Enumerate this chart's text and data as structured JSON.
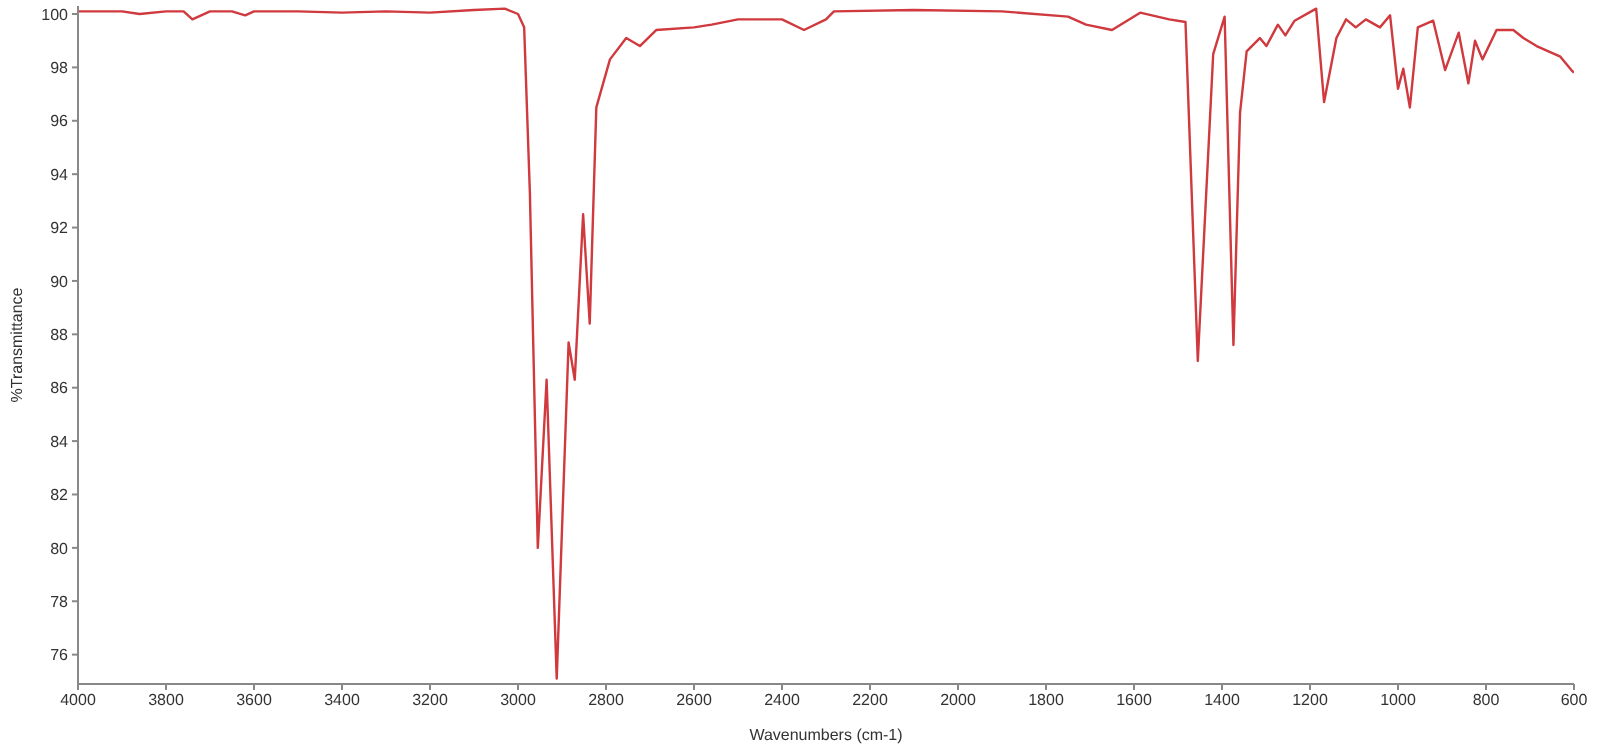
{
  "chart_data": {
    "type": "line",
    "xlabel": "Wavenumbers (cm-1)",
    "ylabel": "%Transmittance",
    "x": [
      4000,
      3900,
      3860,
      3800,
      3760,
      3740,
      3700,
      3650,
      3620,
      3600,
      3500,
      3400,
      3300,
      3200,
      3100,
      3030,
      3000,
      2986,
      2973,
      2955,
      2935,
      2912,
      2885,
      2871,
      2852,
      2837,
      2822,
      2791,
      2754,
      2723,
      2686,
      2600,
      2560,
      2500,
      2400,
      2350,
      2300,
      2282,
      2100,
      1900,
      1750,
      1709,
      1650,
      1586,
      1520,
      1483,
      1455,
      1420,
      1394,
      1374,
      1359,
      1344,
      1314,
      1299,
      1273,
      1256,
      1235,
      1186,
      1168,
      1140,
      1118,
      1096,
      1073,
      1041,
      1018,
      1000,
      988,
      973,
      955,
      920,
      893,
      862,
      840,
      825,
      808,
      776,
      738,
      715,
      685,
      631,
      606,
      600
    ],
    "series": [
      {
        "color": "#d0393e",
        "values": [
          100.1,
          100.1,
          100.0,
          100.1,
          100.1,
          99.8,
          100.1,
          100.1,
          99.95,
          100.1,
          100.1,
          100.05,
          100.1,
          100.05,
          100.15,
          100.2,
          100.0,
          99.5,
          93.3,
          80.0,
          86.3,
          75.1,
          87.7,
          86.3,
          92.5,
          88.4,
          96.5,
          98.3,
          99.1,
          98.8,
          99.4,
          99.5,
          99.6,
          99.8,
          99.8,
          99.4,
          99.8,
          100.1,
          100.15,
          100.1,
          99.9,
          99.6,
          99.4,
          100.05,
          99.8,
          99.7,
          87.0,
          98.5,
          99.9,
          87.6,
          96.3,
          98.6,
          99.1,
          98.8,
          99.6,
          99.2,
          99.75,
          100.2,
          96.7,
          99.1,
          99.8,
          99.5,
          99.8,
          99.5,
          99.95,
          97.2,
          97.95,
          96.5,
          99.5,
          99.75,
          97.9,
          99.3,
          97.4,
          99.0,
          98.3,
          99.4,
          99.4,
          99.1,
          98.8,
          98.4,
          97.9,
          97.8
        ]
      }
    ],
    "xlim": [
      4000,
      600
    ],
    "xticks": [
      4000,
      3800,
      3600,
      3400,
      3200,
      3000,
      2800,
      2600,
      2400,
      2200,
      2000,
      1800,
      1600,
      1400,
      1200,
      1000,
      800,
      600
    ],
    "ylim": [
      74.9,
      100.3
    ],
    "yticks": [
      76,
      78,
      80,
      82,
      84,
      86,
      88,
      90,
      92,
      94,
      96,
      98,
      100
    ],
    "grid": false,
    "line_style": "solid",
    "marker": "none"
  }
}
